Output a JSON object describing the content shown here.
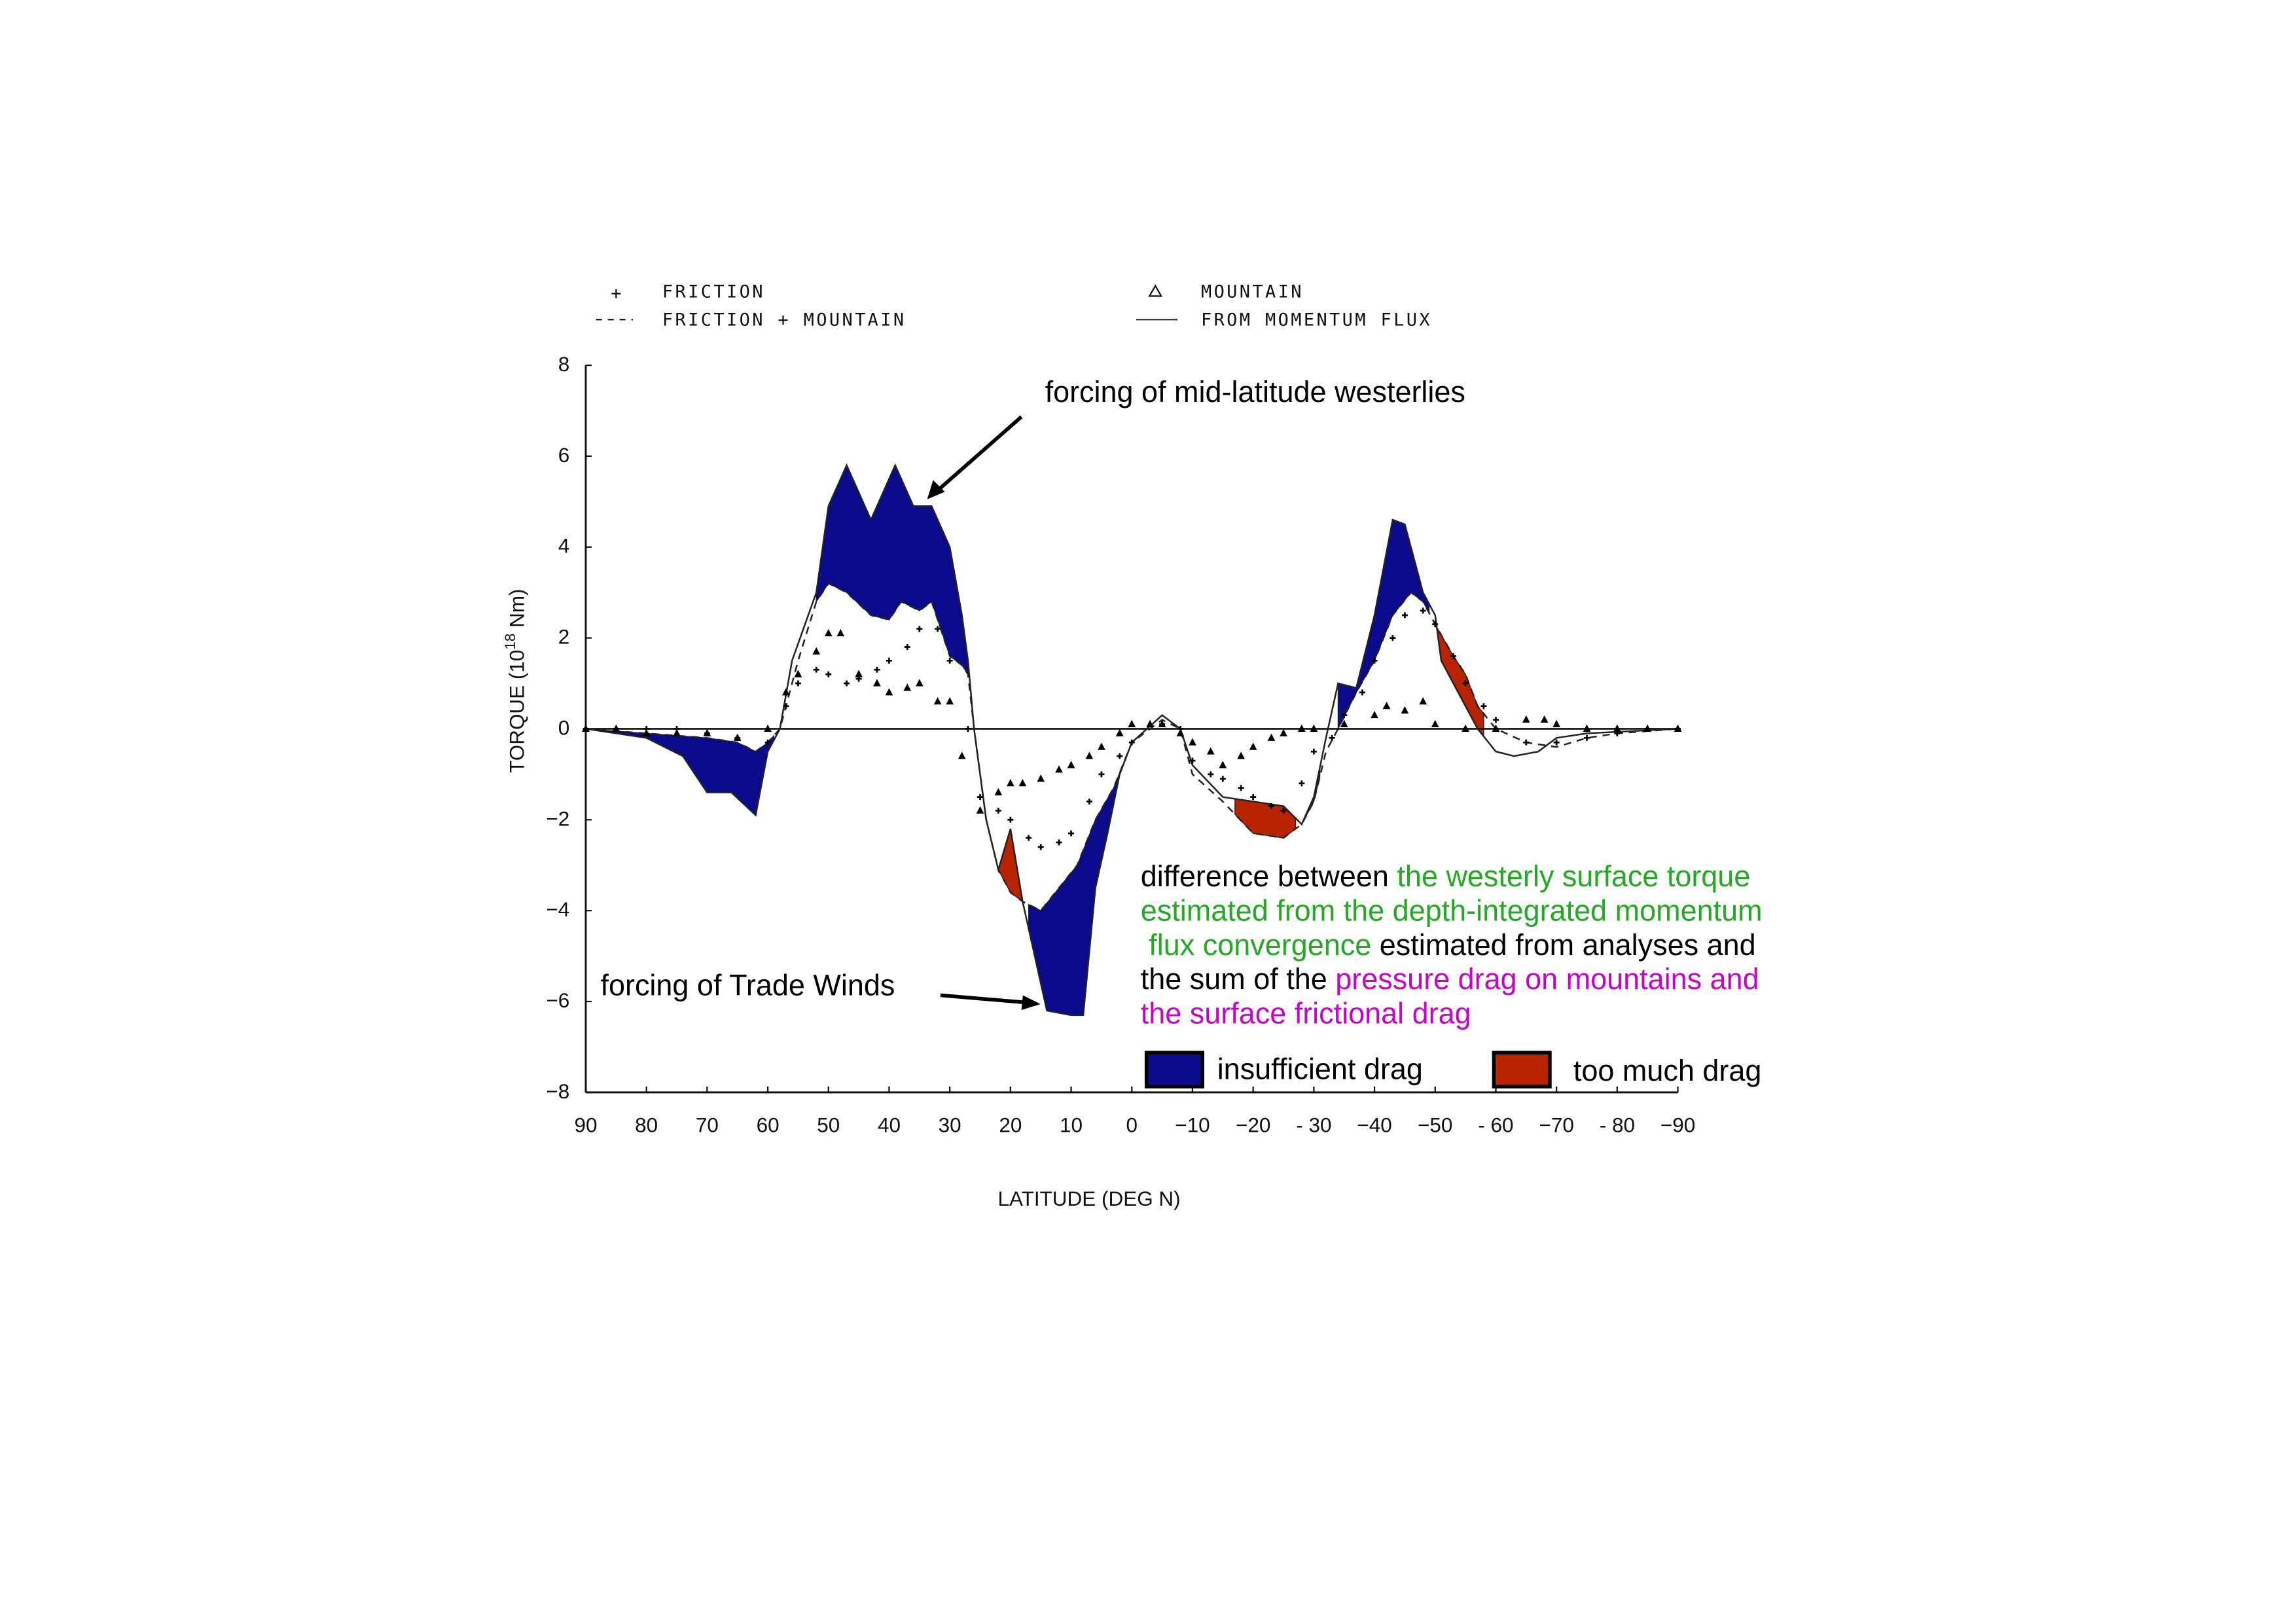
{
  "colors": {
    "insufficient": "#0a0a8c",
    "too_much": "#b82300",
    "green_text": "#22aa22",
    "magenta_text": "#cc00cc",
    "black": "#000000"
  },
  "legend": {
    "friction": "FRICTION",
    "friction_mountain": "FRICTION + MOUNTAIN",
    "mountain": "MOUNTAIN",
    "momentum_flux": "FROM MOMENTUM FLUX"
  },
  "annotations": {
    "westerlies": "forcing of mid-latitude westerlies",
    "trade_winds": "forcing of Trade Winds",
    "explanation_lines": [
      [
        {
          "text": "difference between ",
          "color": "black"
        },
        {
          "text": "the westerly surface torque",
          "color": "green_text"
        }
      ],
      [
        {
          "text": "estimated from the depth-integrated momentum",
          "color": "green_text"
        }
      ],
      [
        {
          "text": " flux convergence",
          "color": "green_text"
        },
        {
          "text": " estimated from analyses and",
          "color": "black"
        }
      ],
      [
        {
          "text": "the sum of the ",
          "color": "black"
        },
        {
          "text": "pressure drag on mountains and",
          "color": "magenta_text"
        }
      ],
      [
        {
          "text": "the surface frictional drag",
          "color": "magenta_text"
        }
      ]
    ],
    "insufficient_drag": "insufficient drag",
    "too_much_drag": "too much drag"
  },
  "chart_data": {
    "type": "line",
    "xlabel": "LATITUDE (DEG N)",
    "ylabel": "TORQUE (10",
    "ylabel_exp": "18",
    "ylabel_unit": " Nm)",
    "xlim": [
      90,
      -90
    ],
    "ylim": [
      -8,
      8
    ],
    "x_ticks": [
      90,
      80,
      70,
      60,
      50,
      40,
      30,
      20,
      10,
      0,
      -10,
      -20,
      -30,
      -40,
      -50,
      -60,
      -70,
      -80,
      -90
    ],
    "x_tick_labels": [
      "90",
      "80",
      "70",
      "60",
      "50",
      "40",
      "30",
      "20",
      "10",
      "0",
      "−10",
      "−20",
      "- 30",
      "−40",
      "−50",
      "- 60",
      "−70",
      "- 80",
      "−90"
    ],
    "y_ticks": [
      8,
      6,
      4,
      2,
      0,
      -2,
      -4,
      -6,
      -8
    ],
    "y_tick_labels": [
      "8",
      "6",
      "4",
      "2",
      "0",
      "−2",
      "−4",
      "−6",
      "−8"
    ],
    "series": [
      {
        "name": "FROM MOMENTUM FLUX",
        "style": "solid",
        "x": [
          90,
          80,
          74,
          70,
          66,
          62,
          60,
          58,
          56,
          52,
          50,
          47,
          43,
          39,
          36,
          33,
          30,
          28,
          27,
          26,
          24,
          22,
          20,
          18,
          16,
          14,
          10,
          8,
          6,
          4,
          2,
          0,
          -5,
          -8,
          -10,
          -15,
          -20,
          -25,
          -28,
          -30,
          -32,
          -34,
          -37,
          -40,
          -43,
          -45,
          -48,
          -50,
          -51,
          -55,
          -57,
          -60,
          -63,
          -67,
          -70,
          -75,
          -90
        ],
        "y": [
          0,
          -0.2,
          -0.6,
          -1.4,
          -1.4,
          -1.9,
          -0.5,
          0,
          1.5,
          3.0,
          4.9,
          5.8,
          4.6,
          5.8,
          4.9,
          4.9,
          4.0,
          2.5,
          1.5,
          0,
          -2,
          -3.1,
          -2.2,
          -3.8,
          -5.0,
          -6.2,
          -6.3,
          -6.3,
          -3.5,
          -2.3,
          -1.0,
          -0.3,
          0.3,
          0,
          -0.8,
          -1.5,
          -1.6,
          -1.7,
          -2.1,
          -1.5,
          -0.2,
          1.0,
          0.9,
          2.5,
          4.6,
          4.5,
          3.0,
          2.5,
          1.5,
          0.5,
          0,
          -0.5,
          -0.6,
          -0.5,
          -0.2,
          -0.1,
          0
        ]
      },
      {
        "name": "FRICTION + MOUNTAIN",
        "style": "dashed",
        "x": [
          90,
          80,
          70,
          65,
          62,
          60,
          58,
          55,
          52,
          50,
          47,
          43,
          40,
          38,
          35,
          33,
          30,
          28,
          27,
          26,
          24,
          22,
          20,
          18,
          15,
          12,
          9,
          6,
          3,
          0,
          -5,
          -8,
          -10,
          -15,
          -20,
          -25,
          -28,
          -30,
          -32,
          -34,
          -37,
          -40,
          -43,
          -46,
          -48,
          -50,
          -53,
          -55,
          -57,
          -60,
          -65,
          -70,
          -75,
          -80,
          -90
        ],
        "y": [
          0,
          -0.1,
          -0.2,
          -0.3,
          -0.5,
          -0.3,
          0,
          1.5,
          2.8,
          3.2,
          3.0,
          2.5,
          2.4,
          2.8,
          2.6,
          2.8,
          1.6,
          1.4,
          1.2,
          0,
          -2,
          -3.1,
          -3.6,
          -3.8,
          -4.0,
          -3.5,
          -3.0,
          -2.0,
          -1.3,
          -0.3,
          0.2,
          0,
          -1.0,
          -1.6,
          -2.3,
          -2.4,
          -2.1,
          -1.6,
          -0.5,
          0,
          0.8,
          1.5,
          2.5,
          3.0,
          2.8,
          2.3,
          1.6,
          1.2,
          0.5,
          0,
          -0.3,
          -0.4,
          -0.2,
          -0.1,
          0
        ]
      },
      {
        "name": "FRICTION",
        "style": "plus",
        "x": [
          90,
          85,
          80,
          75,
          70,
          65,
          60,
          57,
          55,
          52,
          50,
          47,
          45,
          42,
          40,
          37,
          35,
          32,
          30,
          27,
          25,
          22,
          20,
          17,
          15,
          12,
          10,
          7,
          5,
          2,
          0,
          -5,
          -8,
          -10,
          -13,
          -15,
          -18,
          -20,
          -23,
          -25,
          -28,
          -30,
          -33,
          -35,
          -38,
          -40,
          -43,
          -45,
          -48,
          -50,
          -53,
          -55,
          -58,
          -60,
          -65,
          -70,
          -75,
          -80,
          -85,
          -90
        ],
        "y": [
          0,
          0,
          0,
          0,
          -0.1,
          -0.2,
          -0.3,
          0.5,
          1.0,
          1.3,
          1.2,
          1.0,
          1.1,
          1.3,
          1.5,
          1.8,
          2.2,
          2.2,
          1.5,
          0,
          -1.5,
          -1.8,
          -2.0,
          -2.4,
          -2.6,
          -2.5,
          -2.3,
          -1.6,
          -1.0,
          -0.6,
          -0.3,
          0.1,
          0,
          -0.7,
          -1.0,
          -1.1,
          -1.3,
          -1.5,
          -1.7,
          -1.8,
          -1.2,
          -0.5,
          -0.2,
          0.3,
          0.8,
          1.5,
          2.0,
          2.5,
          2.6,
          2.3,
          1.6,
          1.0,
          0.5,
          0.2,
          -0.3,
          -0.3,
          -0.2,
          -0.1,
          0,
          0
        ]
      },
      {
        "name": "MOUNTAIN",
        "style": "triangle",
        "x": [
          90,
          85,
          80,
          75,
          70,
          65,
          60,
          57,
          55,
          52,
          50,
          48,
          45,
          42,
          40,
          37,
          35,
          32,
          30,
          28,
          25,
          22,
          20,
          18,
          15,
          12,
          10,
          7,
          5,
          2,
          0,
          -3,
          -5,
          -8,
          -10,
          -13,
          -15,
          -18,
          -20,
          -23,
          -25,
          -28,
          -30,
          -35,
          -40,
          -42,
          -45,
          -48,
          -50,
          -55,
          -60,
          -65,
          -68,
          -70,
          -75,
          -80,
          -85,
          -90
        ],
        "y": [
          0,
          0,
          -0.1,
          -0.1,
          -0.1,
          -0.2,
          0,
          0.8,
          1.2,
          1.7,
          2.1,
          2.1,
          1.2,
          1.0,
          0.8,
          0.9,
          1.0,
          0.6,
          0.6,
          -0.6,
          -1.8,
          -1.4,
          -1.2,
          -1.2,
          -1.1,
          -0.9,
          -0.8,
          -0.6,
          -0.4,
          -0.1,
          0.1,
          0.1,
          0.1,
          -0.1,
          -0.3,
          -0.5,
          -0.8,
          -0.6,
          -0.4,
          -0.2,
          -0.1,
          0,
          0,
          0.1,
          0.3,
          0.5,
          0.4,
          0.6,
          0.1,
          0,
          0,
          0.2,
          0.2,
          0.1,
          0,
          0,
          0,
          0
        ]
      }
    ],
    "shaded_regions": [
      {
        "type": "insufficient drag",
        "lat_range": [
          90,
          59
        ]
      },
      {
        "type": "insufficient drag",
        "lat_range": [
          52,
          27
        ]
      },
      {
        "type": "too much drag",
        "lat_range": [
          22,
          18
        ]
      },
      {
        "type": "insufficient drag",
        "lat_range": [
          17,
          0
        ]
      },
      {
        "type": "too much drag",
        "lat_range": [
          -17,
          -27
        ]
      },
      {
        "type": "insufficient drag",
        "lat_range": [
          -28,
          -31
        ]
      },
      {
        "type": "insufficient drag",
        "lat_range": [
          -34,
          -49
        ]
      },
      {
        "type": "too much drag",
        "lat_range": [
          -50,
          -58
        ]
      }
    ],
    "grid": false
  }
}
